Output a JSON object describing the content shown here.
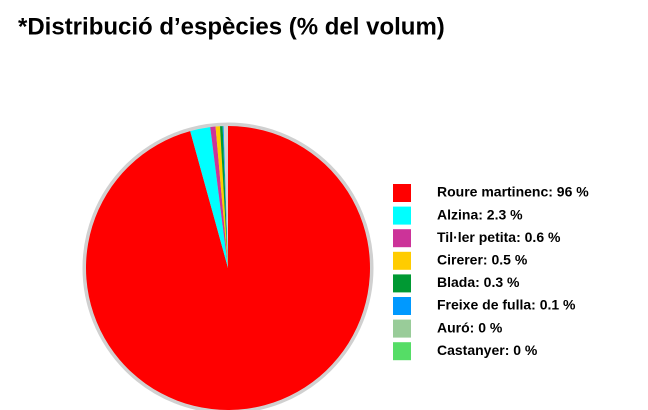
{
  "chart_data": {
    "type": "pie",
    "title": "*Distribució d’espècies (% del volum)",
    "categories": [
      "Roure martinenc: 96 %",
      "Alzina: 2.3 %",
      "Til·ler petita: 0.6 %",
      "Cirerer: 0.5 %",
      "Blada: 0.3 %",
      "Freixe de fulla: 0.1 %",
      "Auró: 0 %",
      "Castanyer: 0 %"
    ],
    "values": [
      96,
      2.3,
      0.6,
      0.5,
      0.3,
      0.1,
      0,
      0
    ],
    "colors": [
      "#ff0000",
      "#00ffff",
      "#cc3399",
      "#ffcc00",
      "#009933",
      "#0099ff",
      "#99cc99",
      "#55dd66"
    ],
    "legend": "right"
  }
}
